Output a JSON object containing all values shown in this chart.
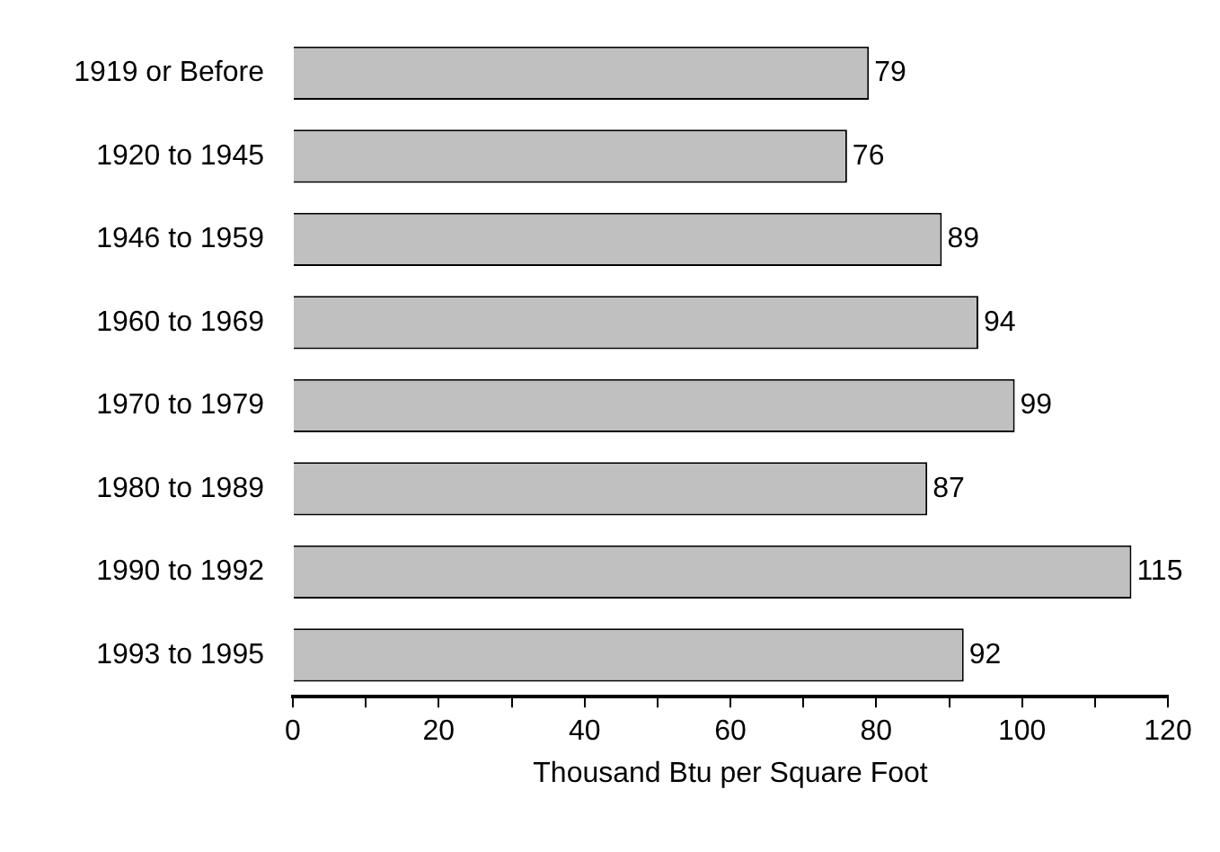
{
  "chart_data": {
    "type": "bar",
    "orientation": "horizontal",
    "xlabel": "Thousand Btu per Square Foot",
    "categories": [
      "1919 or Before",
      "1920 to 1945",
      "1946 to 1959",
      "1960 to 1969",
      "1970 to 1979",
      "1980 to 1989",
      "1990 to 1992",
      "1993 to 1995"
    ],
    "values": [
      79,
      76,
      89,
      94,
      99,
      87,
      115,
      92
    ],
    "color": "#c0c0c0",
    "data_labels": true,
    "grid": false,
    "legend": false,
    "xlim": [
      0,
      120
    ],
    "xticks": [
      0,
      {
        "value": 10,
        "label": null
      },
      20,
      {
        "value": 30,
        "label": null
      },
      40,
      {
        "value": 50,
        "label": null
      },
      60,
      {
        "value": 70,
        "label": null
      },
      80,
      {
        "value": 90,
        "label": null
      },
      100,
      {
        "value": 110,
        "label": null
      },
      120
    ]
  }
}
